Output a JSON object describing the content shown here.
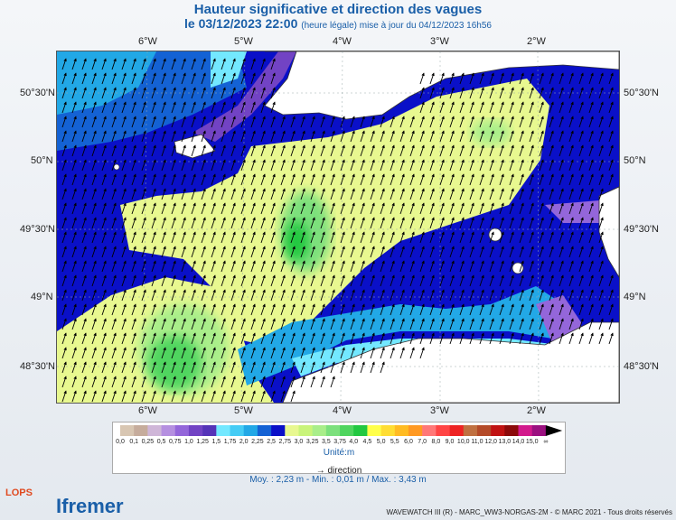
{
  "title": "Hauteur significative et direction des vagues",
  "subtitle_date": "le 03/12/2023 22:00",
  "subtitle_note": "(heure légale) mise à jour du 04/12/2023 16h56",
  "lon_ticks": [
    "6°W",
    "5°W",
    "4°W",
    "3°W",
    "2°W"
  ],
  "lat_ticks": [
    "50°30'N",
    "50°N",
    "49°30'N",
    "49°N",
    "48°30'N"
  ],
  "legend": {
    "labels": [
      "0,0",
      "0,1",
      "0,25",
      "0,5",
      "0,75",
      "1,0",
      "1,25",
      "1,5",
      "1,75",
      "2,0",
      "2,25",
      "2,5",
      "2,75",
      "3,0",
      "3,25",
      "3,5",
      "3,75",
      "4,0",
      "4,5",
      "5,0",
      "5,5",
      "6,0",
      "7,0",
      "8,0",
      "9,0",
      "10,0",
      "11,0",
      "12,0",
      "13,0",
      "14,0",
      "15,0",
      "∞"
    ],
    "colors": [
      "#d8c6b2",
      "#c6ac9c",
      "#cfb6d8",
      "#b58fe0",
      "#9466da",
      "#7243c4",
      "#5533b8",
      "#73e8ff",
      "#45ccf5",
      "#22a8e6",
      "#1462d4",
      "#0a10c8",
      "#e8f890",
      "#c9f47a",
      "#a9ee8a",
      "#7ce07c",
      "#4fd55e",
      "#22c840",
      "#ffff4a",
      "#ffdd33",
      "#ffbb22",
      "#ff9922",
      "#ff7777",
      "#ff4444",
      "#ee2222",
      "#c07040",
      "#b44a28",
      "#c01212",
      "#8c0a0a",
      "#d21a8c",
      "#9b1080"
    ],
    "unit": "Unité:m",
    "direction_label": "direction"
  },
  "stats": "Moy. : 2,23 m   -   Min. : 0,01 m / Max. : 3,43 m",
  "footer": "WAVEWATCH III (R) - MARC_WW3-NORGAS-2M - © MARC 2021 - Tous droits réservés",
  "logos": {
    "lops": "LOPS",
    "ifremer": "Ifremer"
  }
}
